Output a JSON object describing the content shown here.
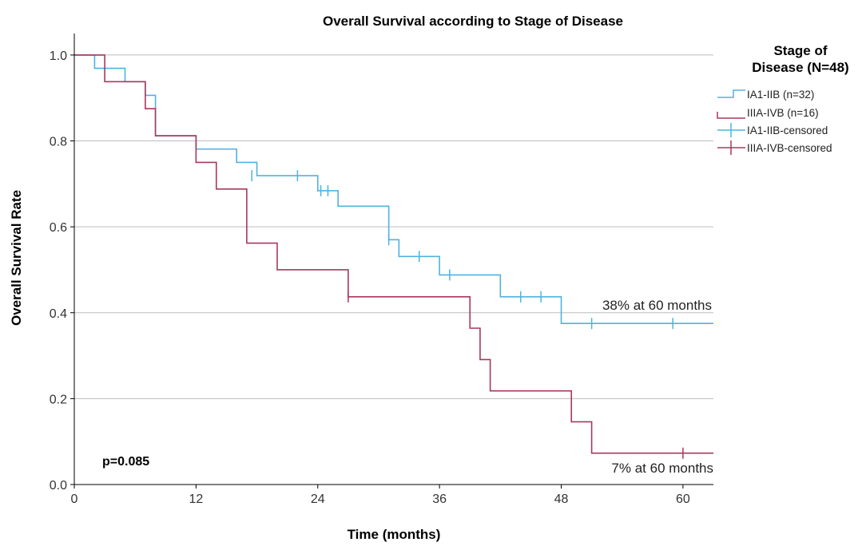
{
  "chart_data": {
    "type": "line",
    "title": "Overall Survival according to Stage of Disease",
    "xlabel": "Time (months)",
    "ylabel": "Overall Survival Rate",
    "xlim": [
      0,
      63
    ],
    "ylim": [
      0,
      1.05
    ],
    "x_ticks": [
      0,
      12,
      24,
      36,
      48,
      60
    ],
    "y_ticks": [
      0.0,
      0.2,
      0.4,
      0.6,
      0.8,
      1.0
    ],
    "x_tick_labels": [
      "0",
      "12",
      "24",
      "36",
      "48",
      "60"
    ],
    "y_tick_labels": [
      "0.0",
      "0.2",
      "0.4",
      "0.6",
      "0.8",
      "1.0"
    ],
    "grid": "horizontal",
    "legend": {
      "title": "Stage of Disease (N=48)",
      "title_lines": [
        "Stage of",
        "Disease (N=48)"
      ],
      "placement": "right",
      "entries": [
        "IA1-IIB (n=32)",
        "IIIA-IVB (n=16)",
        "IA1-IIB-censored",
        "IIIA-IVB-censored"
      ]
    },
    "series": [
      {
        "name": "IA1-IIB (n=32)",
        "color": "#4fb3e0",
        "steps": [
          [
            0,
            1.0
          ],
          [
            2,
            0.969
          ],
          [
            5,
            0.938
          ],
          [
            7,
            0.906
          ],
          [
            8,
            0.812
          ],
          [
            12,
            0.781
          ],
          [
            16,
            0.75
          ],
          [
            18,
            0.719
          ],
          [
            24,
            0.684
          ],
          [
            26,
            0.648
          ],
          [
            31,
            0.57
          ],
          [
            32,
            0.531
          ],
          [
            36,
            0.488
          ],
          [
            42,
            0.437
          ],
          [
            48,
            0.375
          ],
          [
            63,
            0.375
          ]
        ],
        "censored": [
          [
            17.5,
            0.719
          ],
          [
            22,
            0.719
          ],
          [
            24.3,
            0.684
          ],
          [
            25,
            0.684
          ],
          [
            31,
            0.57
          ],
          [
            34,
            0.531
          ],
          [
            37,
            0.488
          ],
          [
            44,
            0.437
          ],
          [
            46,
            0.437
          ],
          [
            51,
            0.375
          ],
          [
            59,
            0.375
          ]
        ]
      },
      {
        "name": "IIIA-IVB (n=16)",
        "color": "#a8385e",
        "steps": [
          [
            0,
            1.0
          ],
          [
            3,
            0.938
          ],
          [
            7,
            0.875
          ],
          [
            8,
            0.812
          ],
          [
            12,
            0.75
          ],
          [
            14,
            0.688
          ],
          [
            17,
            0.562
          ],
          [
            20,
            0.5
          ],
          [
            27,
            0.437
          ],
          [
            39,
            0.364
          ],
          [
            40,
            0.291
          ],
          [
            41,
            0.218
          ],
          [
            49,
            0.146
          ],
          [
            51,
            0.073
          ],
          [
            63,
            0.073
          ]
        ],
        "censored": [
          [
            27,
            0.437
          ],
          [
            60,
            0.073
          ]
        ]
      }
    ],
    "annotations": [
      "38% at 60 months",
      "7% at 60 months",
      "p=0.085"
    ]
  }
}
